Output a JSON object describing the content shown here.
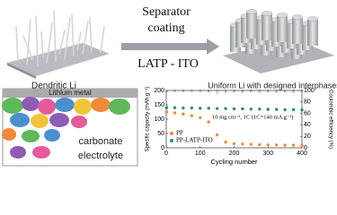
{
  "header": {
    "left_caption": "Dendritic Li",
    "right_caption": "Uniform Li with designed interphases",
    "arrow_top": [
      "Separator",
      "coating"
    ],
    "arrow_bottom": "LATP - ITO"
  },
  "schematic": {
    "layer": "Lithium metal",
    "electrolyte": [
      "carbonate",
      "electrolyte"
    ]
  },
  "chart_data": {
    "type": "scatter",
    "annotation": "10 mg cm⁻², 1C (1C=140 mA g⁻¹)",
    "xlabel": "Cycling number",
    "ylabel": "Specific capacity (mAh g⁻¹)",
    "y2label": "Coulombic efficiency (%)",
    "x": [
      1,
      25,
      50,
      75,
      100,
      125,
      150,
      175,
      200,
      225,
      250,
      275,
      300,
      325,
      350,
      375,
      400
    ],
    "series": [
      {
        "name": "PP",
        "color": "#f08a3c",
        "values": [
          125,
          122,
          118,
          112,
          105,
          90,
          45,
          20,
          15,
          13,
          12,
          11,
          10,
          10,
          9,
          9,
          8
        ],
        "efficiency": [
          98,
          99,
          99,
          99,
          99,
          98,
          96,
          97,
          98,
          97,
          98,
          97,
          98,
          97,
          98,
          97,
          98
        ]
      },
      {
        "name": "PP-LATP-ITO",
        "color": "#2e8b7a",
        "values": [
          140,
          140,
          139,
          139,
          138,
          138,
          137,
          137,
          136,
          136,
          135,
          135,
          134,
          134,
          133,
          133,
          132
        ],
        "efficiency": [
          99,
          100,
          100,
          100,
          100,
          100,
          100,
          100,
          100,
          100,
          100,
          100,
          100,
          100,
          100,
          100,
          100
        ]
      }
    ],
    "xlim": [
      0,
      400
    ],
    "xticks": [
      0,
      100,
      200,
      300,
      400
    ],
    "ylim": [
      0,
      200
    ],
    "yticks": [
      0,
      50,
      100,
      150,
      200
    ],
    "y2lim": [
      0,
      100
    ],
    "y2ticks": [
      0,
      20,
      40,
      60,
      80,
      100
    ],
    "legend": "lower-left"
  }
}
